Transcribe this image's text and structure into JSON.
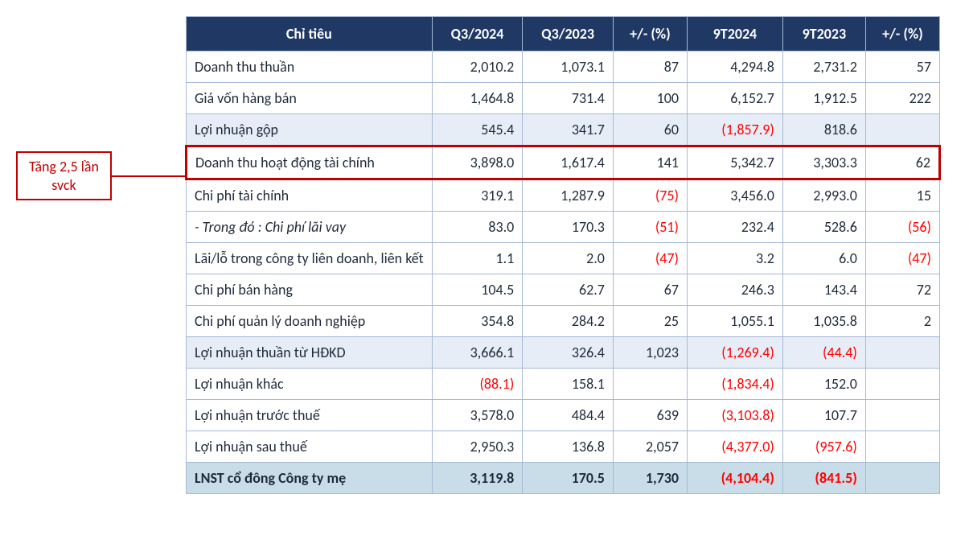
{
  "callout": {
    "line1": "Tăng 2,5 lần",
    "line2": "svck"
  },
  "headers": {
    "label": "Chỉ tiêu",
    "q3_2024": "Q3/2024",
    "q3_2023": "Q3/2023",
    "pct_q": "+/- (%)",
    "y9_2024": "9T2024",
    "y9_2023": "9T2023",
    "pct_y": "+/- (%)"
  },
  "rows": [
    {
      "label": "Doanh thu thuần",
      "q3_2024": "2,010.2",
      "q3_2023": "1,073.1",
      "pct_q": "87",
      "y9_2024": "4,294.8",
      "y9_2023": "2,731.2",
      "pct_y": "57"
    },
    {
      "label": "Giá vốn hàng bán",
      "q3_2024": "1,464.8",
      "q3_2023": "731.4",
      "pct_q": "100",
      "y9_2024": "6,152.7",
      "y9_2023": "1,912.5",
      "pct_y": "222"
    },
    {
      "label": "Lợi nhuận gộp",
      "q3_2024": "545.4",
      "q3_2023": "341.7",
      "pct_q": "60",
      "y9_2024": "(1,857.9)",
      "y9_2024_neg": true,
      "y9_2023": "818.6",
      "pct_y": "",
      "shade": true
    },
    {
      "label": "Doanh thu hoạt động tài chính",
      "q3_2024": "3,898.0",
      "q3_2023": "1,617.4",
      "pct_q": "141",
      "y9_2024": "5,342.7",
      "y9_2023": "3,303.3",
      "pct_y": "62",
      "highlight": true
    },
    {
      "label": "Chi phí tài chính",
      "q3_2024": "319.1",
      "q3_2023": "1,287.9",
      "pct_q": "(75)",
      "pct_q_neg": true,
      "y9_2024": "3,456.0",
      "y9_2023": "2,993.0",
      "pct_y": "15"
    },
    {
      "label": "- Trong đó : Chi phí lãi vay",
      "sub": true,
      "q3_2024": "83.0",
      "q3_2023": "170.3",
      "pct_q": "(51)",
      "pct_q_neg": true,
      "y9_2024": "232.4",
      "y9_2023": "528.6",
      "pct_y": "(56)",
      "pct_y_neg": true
    },
    {
      "label": "Lãi/lỗ trong công ty liên doanh, liên kết",
      "q3_2024": "1.1",
      "q3_2023": "2.0",
      "pct_q": "(47)",
      "pct_q_neg": true,
      "y9_2024": "3.2",
      "y9_2023": "6.0",
      "pct_y": "(47)",
      "pct_y_neg": true
    },
    {
      "label": "Chi phí bán hàng",
      "q3_2024": "104.5",
      "q3_2023": "62.7",
      "pct_q": "67",
      "y9_2024": "246.3",
      "y9_2023": "143.4",
      "pct_y": "72"
    },
    {
      "label": "Chi phí quản lý doanh nghiệp",
      "q3_2024": "354.8",
      "q3_2023": "284.2",
      "pct_q": "25",
      "y9_2024": "1,055.1",
      "y9_2023": "1,035.8",
      "pct_y": "2"
    },
    {
      "label": "Lợi nhuận thuần từ HĐKD",
      "q3_2024": "3,666.1",
      "q3_2023": "326.4",
      "pct_q": "1,023",
      "y9_2024": "(1,269.4)",
      "y9_2024_neg": true,
      "y9_2023": "(44.4)",
      "y9_2023_neg": true,
      "pct_y": "",
      "shade": true
    },
    {
      "label": "Lợi nhuận khác",
      "q3_2024": "(88.1)",
      "q3_2024_neg": true,
      "q3_2023": "158.1",
      "pct_q": "",
      "y9_2024": "(1,834.4)",
      "y9_2024_neg": true,
      "y9_2023": "152.0",
      "pct_y": ""
    },
    {
      "label": "Lợi nhuận trước thuế",
      "q3_2024": "3,578.0",
      "q3_2023": "484.4",
      "pct_q": "639",
      "y9_2024": "(3,103.8)",
      "y9_2024_neg": true,
      "y9_2023": "107.7",
      "pct_y": ""
    },
    {
      "label": "Lợi nhuận sau thuế",
      "q3_2024": "2,950.3",
      "q3_2023": "136.8",
      "pct_q": "2,057",
      "y9_2024": "(4,377.0)",
      "y9_2024_neg": true,
      "y9_2023": "(957.6)",
      "y9_2023_neg": true,
      "pct_y": ""
    },
    {
      "label": "LNST cổ đông Công ty mẹ",
      "q3_2024": "3,119.8",
      "q3_2023": "170.5",
      "pct_q": "1,730",
      "y9_2024": "(4,104.4)",
      "y9_2024_neg": true,
      "y9_2023": "(841.5)",
      "y9_2023_neg": true,
      "pct_y": "",
      "final": true
    }
  ]
}
